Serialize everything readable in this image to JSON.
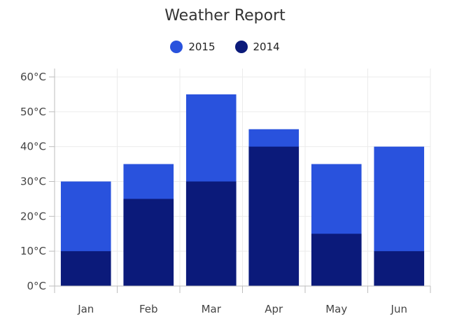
{
  "chart_data": {
    "type": "bar",
    "title": "Weather Report",
    "categories": [
      "Jan",
      "Feb",
      "Mar",
      "Apr",
      "May",
      "Jun"
    ],
    "series": [
      {
        "name": "2015",
        "values": [
          30,
          35,
          55,
          45,
          35,
          40
        ],
        "color": "#2952dd"
      },
      {
        "name": "2014",
        "values": [
          10,
          25,
          30,
          40,
          15,
          10
        ],
        "color": "#0b1a7a"
      }
    ],
    "y_ticks": [
      "0°C",
      "10°C",
      "20°C",
      "30°C",
      "40°C",
      "50°C",
      "60°C"
    ],
    "ylim": [
      0,
      60
    ],
    "grid": true,
    "legend_position": "top-center"
  }
}
